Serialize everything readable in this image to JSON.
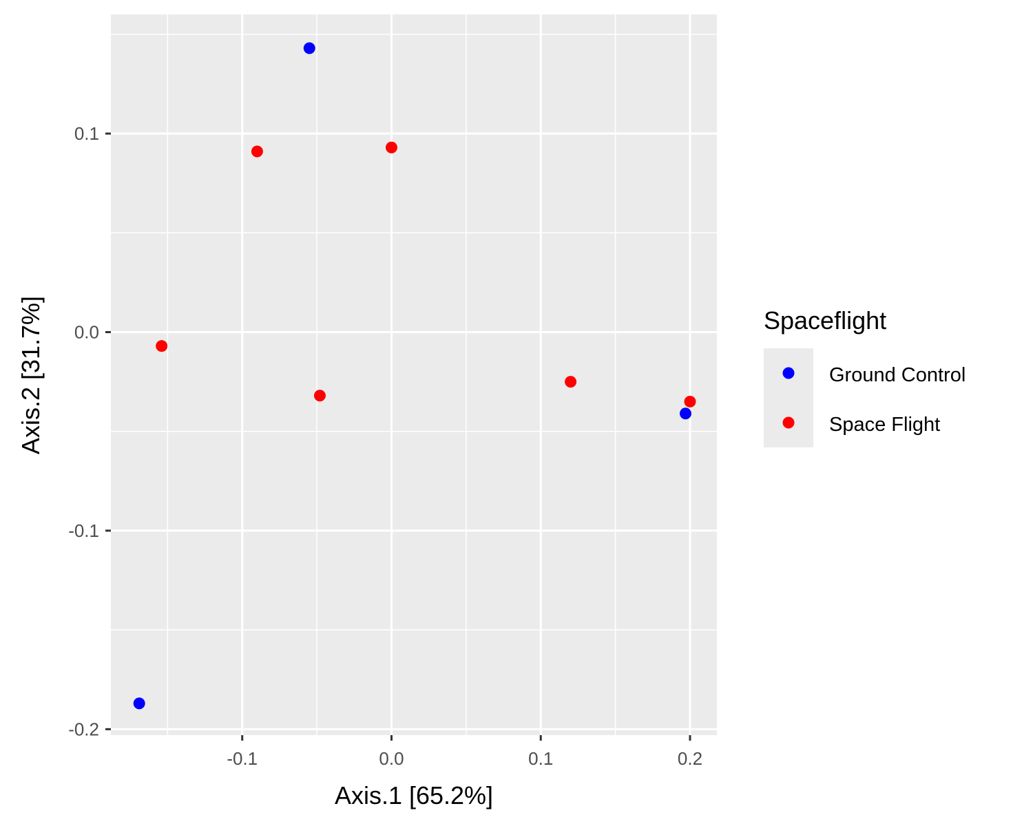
{
  "chart_data": {
    "type": "scatter",
    "xlabel": "Axis.1   [65.2%]",
    "ylabel": "Axis.2   [31.7%]",
    "xlim": [
      -0.188,
      0.218
    ],
    "ylim": [
      -0.203,
      0.16
    ],
    "x_ticks": [
      -0.1,
      0.0,
      0.1,
      0.2
    ],
    "x_tick_labels": [
      "-0.1",
      "0.0",
      "0.1",
      "0.2"
    ],
    "y_ticks": [
      -0.2,
      -0.1,
      0.0,
      0.1
    ],
    "y_tick_labels": [
      "-0.2",
      "-0.1",
      "0.0",
      "0.1"
    ],
    "x_minor": [
      -0.15,
      -0.05,
      0.05,
      0.15
    ],
    "y_minor": [
      -0.15,
      -0.05,
      0.05,
      0.15
    ],
    "grid": true,
    "panel_background": "#ebebeb",
    "legend": {
      "title": "Spaceflight",
      "position": "right"
    },
    "series": [
      {
        "name": "Ground Control",
        "color": "#0000ff",
        "points": [
          {
            "x": -0.055,
            "y": 0.143
          },
          {
            "x": -0.169,
            "y": -0.187
          },
          {
            "x": 0.197,
            "y": -0.041
          }
        ]
      },
      {
        "name": "Space Flight",
        "color": "#ff0000",
        "points": [
          {
            "x": -0.09,
            "y": 0.091
          },
          {
            "x": 0.0,
            "y": 0.093
          },
          {
            "x": -0.154,
            "y": -0.007
          },
          {
            "x": -0.048,
            "y": -0.032
          },
          {
            "x": 0.12,
            "y": -0.025
          },
          {
            "x": 0.2,
            "y": -0.035
          }
        ]
      }
    ]
  }
}
